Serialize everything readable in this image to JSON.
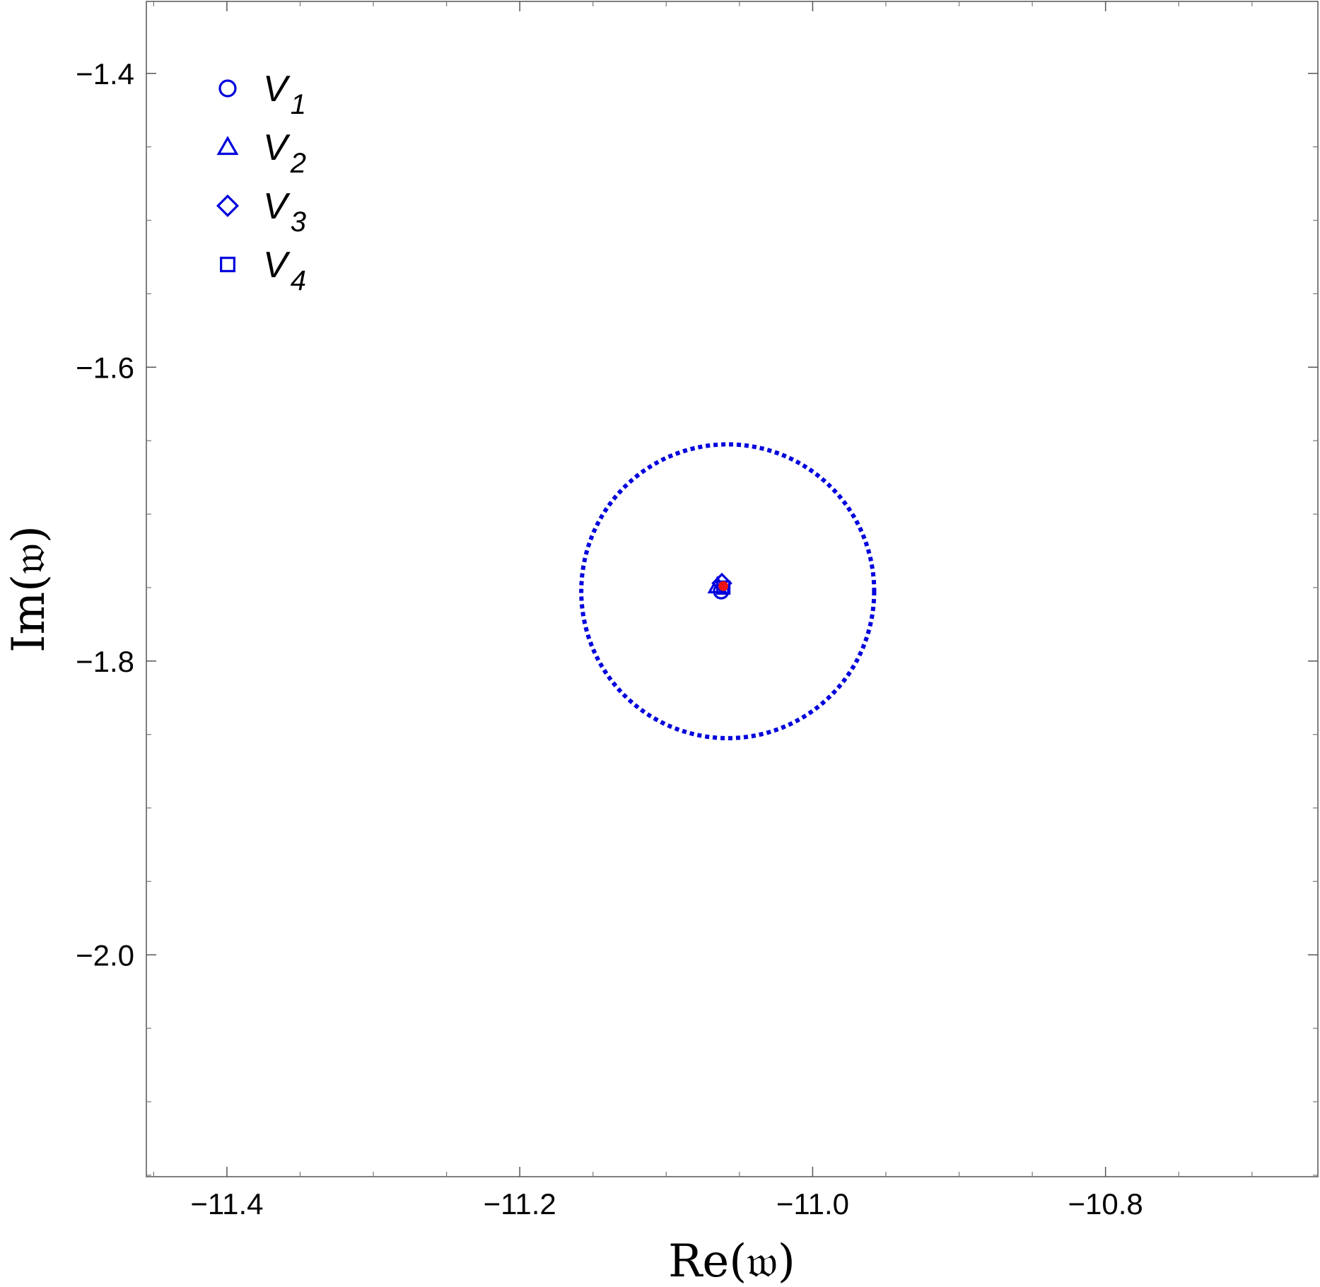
{
  "chart_data": {
    "type": "scatter",
    "xlabel": "Re(𝔴)",
    "ylabel": "Im(𝔴)",
    "xlim": [
      -11.455,
      -10.655
    ],
    "ylim": [
      -2.151,
      -1.351
    ],
    "x_ticks": [
      -11.4,
      -11.2,
      -11.0,
      -10.8
    ],
    "x_tick_labels": [
      "−11.4",
      "−11.2",
      "−11.0",
      "−10.8"
    ],
    "y_ticks": [
      -1.4,
      -1.6,
      -1.8,
      -2.0
    ],
    "y_tick_labels": [
      "−1.4",
      "−1.6",
      "−1.8",
      "−2.0"
    ],
    "x_minor_ticks": [
      -11.45,
      -11.35,
      -11.3,
      -11.25,
      -11.15,
      -11.1,
      -11.05,
      -10.95,
      -10.9,
      -10.85,
      -10.75,
      -10.7
    ],
    "y_minor_ticks": [
      -1.35,
      -1.45,
      -1.5,
      -1.55,
      -1.65,
      -1.7,
      -1.75,
      -1.85,
      -1.9,
      -1.95,
      -2.05,
      -2.1,
      -2.15
    ],
    "grid": false,
    "legend_position": "top-left",
    "series": [
      {
        "name": "V",
        "sub": "1",
        "marker": "circle",
        "color": "#0000dd",
        "points": [
          [
            -11.0625,
            -1.7525
          ]
        ]
      },
      {
        "name": "V",
        "sub": "2",
        "marker": "triangle",
        "color": "#0000dd",
        "points": [
          [
            -11.065,
            -1.749
          ]
        ]
      },
      {
        "name": "V",
        "sub": "3",
        "marker": "diamond",
        "color": "#0000dd",
        "points": [
          [
            -11.062,
            -1.747
          ]
        ]
      },
      {
        "name": "V",
        "sub": "4",
        "marker": "square",
        "color": "#0000dd",
        "points": [
          [
            -11.061,
            -1.75
          ]
        ]
      }
    ],
    "reference_point": {
      "x": -11.061,
      "y": -1.749,
      "color": "#ee1111"
    },
    "circle": {
      "center_x": -11.058,
      "center_y": -1.7525,
      "radius": 0.1,
      "color": "#0000dd",
      "style": "dotted"
    }
  }
}
